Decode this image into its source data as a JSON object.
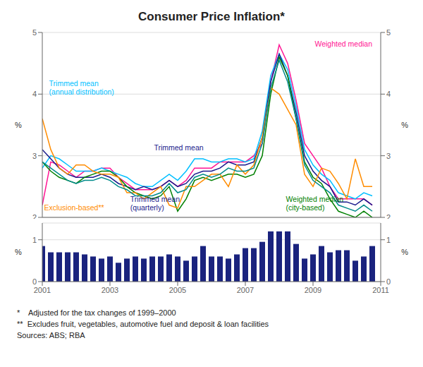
{
  "chart_data": [
    {
      "type": "line",
      "title": "Consumer Price Inflation*",
      "ylabel": "%",
      "y2label": "%",
      "xlim": [
        2001,
        2011
      ],
      "ylim": [
        2,
        5
      ],
      "yticks": [
        2,
        3,
        4,
        5
      ],
      "y2lim": [
        2,
        5
      ],
      "y2ticks": [
        2,
        3,
        4,
        5
      ],
      "grid": true,
      "tick_labels": "y",
      "x": [
        2001,
        2001.25,
        2001.5,
        2001.75,
        2002,
        2002.25,
        2002.5,
        2002.75,
        2003,
        2003.25,
        2003.5,
        2003.75,
        2004,
        2004.25,
        2004.5,
        2004.75,
        2005,
        2005.25,
        2005.5,
        2005.75,
        2006,
        2006.25,
        2006.5,
        2006.75,
        2007,
        2007.25,
        2007.5,
        2007.75,
        2008,
        2008.25,
        2008.5,
        2008.75,
        2009,
        2009.25,
        2009.5,
        2009.75,
        2010,
        2010.25,
        2010.5,
        2010.75
      ],
      "series": [
        {
          "color": "#ff1493",
          "values": [
            2.2,
            2.9,
            2.85,
            2.75,
            2.65,
            2.75,
            2.75,
            2.8,
            2.8,
            2.65,
            2.55,
            2.45,
            2.45,
            2.45,
            2.5,
            2.6,
            2.5,
            2.6,
            2.8,
            2.8,
            2.8,
            2.9,
            2.9,
            2.9,
            2.9,
            3.0,
            3.2,
            4.2,
            4.8,
            4.5,
            3.9,
            3.2,
            3.0,
            2.8,
            2.5,
            2.3,
            2.3,
            2.3,
            2.3,
            2.2
          ]
        },
        {
          "color": "#00bfff",
          "values": [
            2.8,
            3.0,
            2.95,
            2.85,
            2.75,
            2.75,
            2.75,
            2.8,
            2.75,
            2.7,
            2.65,
            2.55,
            2.5,
            2.5,
            2.6,
            2.7,
            2.6,
            2.75,
            2.95,
            2.95,
            2.9,
            2.9,
            2.95,
            2.95,
            2.9,
            2.95,
            3.4,
            4.3,
            4.65,
            4.4,
            3.8,
            3.1,
            2.85,
            2.7,
            2.6,
            2.4,
            2.35,
            2.3,
            2.4,
            2.35
          ]
        },
        {
          "color": "#1a1a8c",
          "values": [
            3.1,
            2.95,
            2.8,
            2.7,
            2.65,
            2.65,
            2.65,
            2.7,
            2.65,
            2.55,
            2.5,
            2.45,
            2.5,
            2.45,
            2.5,
            2.6,
            2.5,
            2.55,
            2.7,
            2.75,
            2.75,
            2.8,
            2.9,
            2.85,
            2.85,
            2.9,
            3.3,
            4.2,
            4.65,
            4.3,
            3.7,
            3.0,
            2.75,
            2.6,
            2.5,
            2.25,
            2.25,
            2.2,
            2.3,
            2.2
          ]
        },
        {
          "color": "#008000",
          "values": [
            2.9,
            2.75,
            2.65,
            2.6,
            2.55,
            2.65,
            2.7,
            2.75,
            2.75,
            2.65,
            2.5,
            2.4,
            2.35,
            2.3,
            2.35,
            2.5,
            2.1,
            2.3,
            2.6,
            2.65,
            2.6,
            2.65,
            2.7,
            2.7,
            2.65,
            2.7,
            3.0,
            4.0,
            4.6,
            4.3,
            3.6,
            2.9,
            2.65,
            2.55,
            2.3,
            2.1,
            2.05,
            2.0,
            2.1,
            2.0
          ]
        },
        {
          "color": "#ff8c00",
          "values": [
            3.6,
            3.1,
            2.8,
            2.7,
            2.85,
            2.85,
            2.75,
            2.7,
            2.7,
            2.65,
            2.4,
            2.4,
            2.3,
            2.4,
            2.5,
            2.2,
            2.15,
            2.5,
            2.5,
            2.6,
            2.7,
            2.7,
            2.5,
            2.85,
            2.7,
            2.85,
            3.3,
            4.1,
            4.0,
            3.75,
            3.5,
            2.7,
            2.5,
            2.8,
            2.75,
            2.55,
            2.3,
            2.95,
            2.5,
            2.5
          ]
        },
        {
          "color": "#008b8b",
          "values": [
            2.9,
            2.8,
            2.7,
            2.6,
            2.55,
            2.6,
            2.6,
            2.65,
            2.6,
            2.5,
            2.45,
            2.35,
            2.35,
            2.35,
            2.4,
            2.55,
            2.4,
            2.45,
            2.65,
            2.7,
            2.65,
            2.7,
            2.8,
            2.75,
            2.75,
            2.8,
            3.2,
            4.1,
            4.55,
            4.2,
            3.6,
            2.85,
            2.6,
            2.5,
            2.4,
            2.2,
            2.15,
            2.1,
            2.2,
            2.1
          ]
        }
      ],
      "annotations": [
        {
          "text": "Weighted median",
          "x": 2010.75,
          "y": 4.88,
          "color": "#ff1493"
        },
        {
          "text": "Trimmed mean\n(annual distribution)",
          "x": 2001.2,
          "y": 4.25,
          "color": "#00bfff"
        },
        {
          "text": "Trimmed mean",
          "x": 2004.3,
          "y": 3.2,
          "color": "#1a1a8c"
        },
        {
          "text": "Exclusion-based**",
          "x": 2001.05,
          "y": 2.08,
          "color": "#ff8c00"
        },
        {
          "text": "Weighted median\n(city-based)",
          "x": 2008.2,
          "y": 2.08,
          "color": "#008000"
        },
        {
          "text": "Trimmed mean\n(quarterly)",
          "x": 2003.6,
          "y": 2.08,
          "color": "#1a1a8c"
        }
      ],
      "footnotes": [
        "*    Adjusted for the tax changes of 1999–2000",
        "**  Excludes fruit, vegetables, automotive fuel and deposit & loan facilities",
        "Sources: ABS; RBA"
      ]
    },
    {
      "type": "bar",
      "ylabel": "%",
      "y2label": "%",
      "xlim": [
        2001,
        2011
      ],
      "xticks": [
        2001,
        2003,
        2005,
        2007,
        2009,
        2011
      ],
      "ylim": [
        0,
        1.4
      ],
      "yticks": [
        0,
        1
      ],
      "y2lim": [
        0,
        1.4
      ],
      "y2ticks": [
        0,
        1
      ],
      "grid": true,
      "color": "#1a237e",
      "x": [
        2001,
        2001.25,
        2001.5,
        2001.75,
        2002,
        2002.25,
        2002.5,
        2002.75,
        2003,
        2003.25,
        2003.5,
        2003.75,
        2004,
        2004.25,
        2004.5,
        2004.75,
        2005,
        2005.25,
        2005.5,
        2005.75,
        2006,
        2006.25,
        2006.5,
        2006.75,
        2007,
        2007.25,
        2007.5,
        2007.75,
        2008,
        2008.25,
        2008.5,
        2008.75,
        2009,
        2009.25,
        2009.5,
        2009.75,
        2010,
        2010.25,
        2010.5,
        2010.75
      ],
      "values": [
        0.85,
        0.7,
        0.7,
        0.7,
        0.7,
        0.65,
        0.6,
        0.55,
        0.6,
        0.45,
        0.55,
        0.6,
        0.55,
        0.6,
        0.6,
        0.65,
        0.6,
        0.5,
        0.6,
        0.85,
        0.6,
        0.6,
        0.55,
        0.65,
        0.8,
        0.8,
        0.95,
        1.2,
        1.2,
        1.2,
        0.9,
        0.55,
        0.65,
        0.85,
        0.7,
        0.75,
        0.75,
        0.5,
        0.6,
        0.85
      ]
    }
  ]
}
